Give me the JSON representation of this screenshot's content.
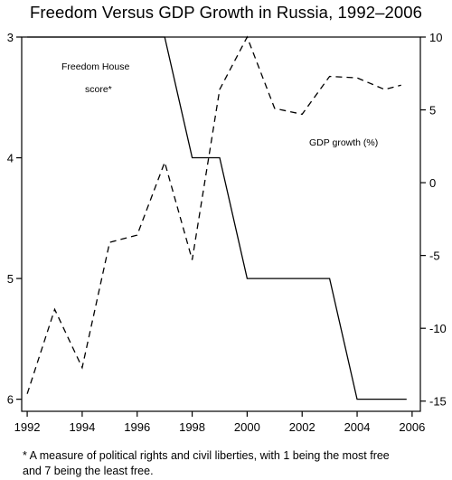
{
  "chart_data": {
    "type": "line",
    "title": "Freedom Versus GDP Growth in Russia, 1992–2006",
    "x_ticks": [
      "1992",
      "1994",
      "1996",
      "1998",
      "2000",
      "2002",
      "2004",
      "2006"
    ],
    "xlim": [
      1991.8,
      2006.3
    ],
    "left_axis": {
      "ylim": [
        3,
        6.1
      ],
      "inverted": true,
      "ticks": [
        "3",
        "4",
        "5",
        "6"
      ]
    },
    "right_axis": {
      "ylim": [
        -15.7,
        10
      ],
      "ticks": [
        "10",
        "5",
        "0",
        "-5",
        "-10",
        "-15"
      ]
    },
    "series": [
      {
        "name": "Freedom House score*",
        "axis": "left",
        "style": "solid",
        "x": [
          1992,
          1997,
          1998,
          1999,
          2000,
          2003,
          2004,
          2005.8
        ],
        "y": [
          3,
          3,
          4,
          4,
          5,
          5,
          6,
          6
        ]
      },
      {
        "name": "GDP growth (%)",
        "axis": "right",
        "style": "dashed",
        "x": [
          1992,
          1993,
          1994,
          1995,
          1996,
          1997,
          1998,
          1999,
          2000,
          2001,
          2002,
          2003,
          2004,
          2005,
          2005.6
        ],
        "y": [
          -14.5,
          -8.7,
          -12.7,
          -4.1,
          -3.6,
          1.4,
          -5.3,
          6.4,
          10.0,
          5.1,
          4.7,
          7.3,
          7.2,
          6.4,
          6.7
        ]
      }
    ],
    "annotations": {
      "freedom_label_line1": "Freedom House",
      "freedom_label_line2": "score*",
      "gdp_label": "GDP growth (%)"
    },
    "grid": false,
    "footnote_line1": "* A measure of political rights and civil liberties, with 1 being the most free",
    "footnote_line2": "and 7 being the least free."
  }
}
